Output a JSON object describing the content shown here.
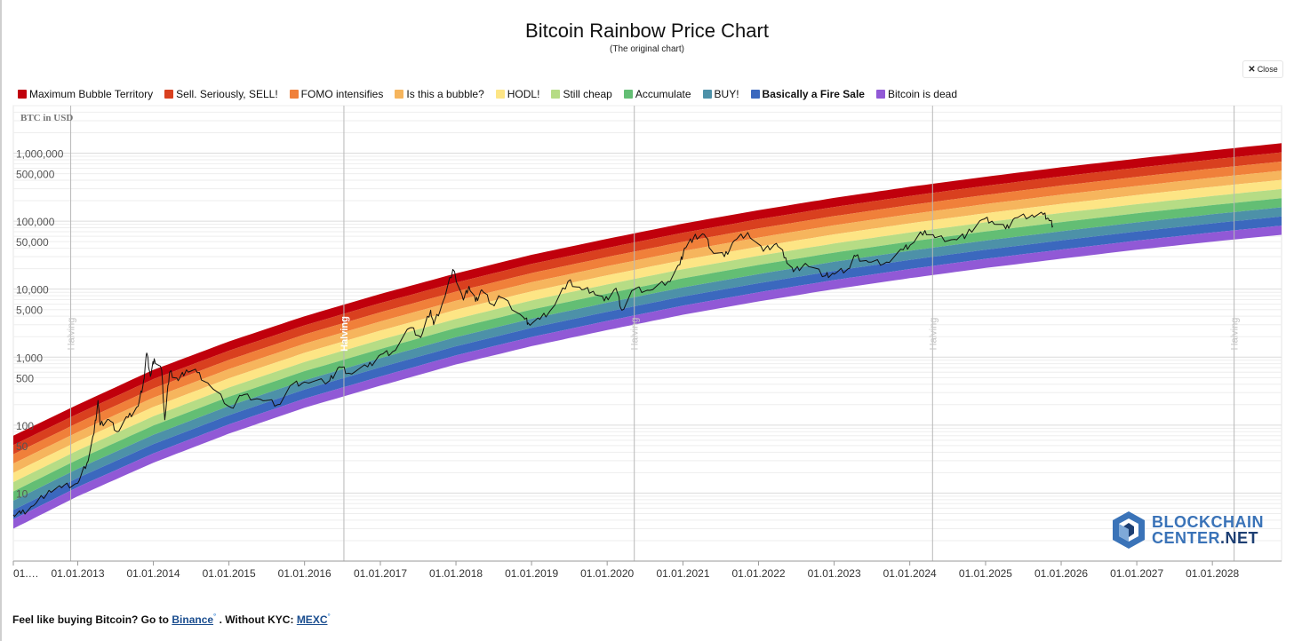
{
  "page": {
    "title": "Bitcoin Rainbow Price Chart",
    "subtitle": "(The original chart)",
    "close_label": "Close",
    "footer": {
      "prefix": "Feel like buying Bitcoin? Go to",
      "link1": "Binance",
      "middle": ". Without KYC:",
      "link2": "MEXC",
      "mark": "°"
    },
    "logo": {
      "line1": "BLOCKCHAIN",
      "line2a": "CENTER",
      "line2b": ".NET"
    }
  },
  "chart_data": {
    "type": "area",
    "title": "Bitcoin Rainbow Price Chart",
    "ylabel": "BTC in USD",
    "y_scale": "log",
    "ylim": [
      1,
      5000000
    ],
    "xlim": [
      "2012-02-25",
      "2028-11-30"
    ],
    "y_ticks": [
      {
        "value": 1000000,
        "label": "1,000,000"
      },
      {
        "value": 500000,
        "label": "500,000"
      },
      {
        "value": 100000,
        "label": "100,000"
      },
      {
        "value": 50000,
        "label": "50,000"
      },
      {
        "value": 10000,
        "label": "10,000"
      },
      {
        "value": 5000,
        "label": "5,000"
      },
      {
        "value": 1000,
        "label": "1,000"
      },
      {
        "value": 500,
        "label": "500"
      },
      {
        "value": 100,
        "label": "100"
      },
      {
        "value": 50,
        "label": "50"
      },
      {
        "value": 10,
        "label": "10"
      }
    ],
    "x_ticks": [
      {
        "date": "2012-02-25",
        "label": "01.…"
      },
      {
        "date": "2013-01-01",
        "label": "01.01.2013"
      },
      {
        "date": "2014-01-01",
        "label": "01.01.2014"
      },
      {
        "date": "2015-01-01",
        "label": "01.01.2015"
      },
      {
        "date": "2016-01-01",
        "label": "01.01.2016"
      },
      {
        "date": "2017-01-01",
        "label": "01.01.2017"
      },
      {
        "date": "2018-01-01",
        "label": "01.01.2018"
      },
      {
        "date": "2019-01-01",
        "label": "01.01.2019"
      },
      {
        "date": "2020-01-01",
        "label": "01.01.2020"
      },
      {
        "date": "2021-01-01",
        "label": "01.01.2021"
      },
      {
        "date": "2022-01-01",
        "label": "01.01.2022"
      },
      {
        "date": "2023-01-01",
        "label": "01.01.2023"
      },
      {
        "date": "2024-01-01",
        "label": "01.01.2024"
      },
      {
        "date": "2025-01-01",
        "label": "01.01.2025"
      },
      {
        "date": "2026-01-01",
        "label": "01.01.2026"
      },
      {
        "date": "2027-01-01",
        "label": "01.01.2027"
      },
      {
        "date": "2028-01-01",
        "label": "01.01.2028"
      }
    ],
    "halvings": [
      {
        "date": "2012-11-28",
        "label": "Halving"
      },
      {
        "date": "2016-07-09",
        "label": "Halving"
      },
      {
        "date": "2020-05-11",
        "label": "Halving"
      },
      {
        "date": "2024-04-20",
        "label": "Halving"
      },
      {
        "date": "2028-04-15",
        "label": "Halving"
      }
    ],
    "bands": [
      {
        "name": "Maximum Bubble Territory",
        "color": "#c0000c"
      },
      {
        "name": "Sell. Seriously, SELL!",
        "color": "#d9401f"
      },
      {
        "name": "FOMO intensifies",
        "color": "#f0803a"
      },
      {
        "name": "Is this a bubble?",
        "color": "#f6b55d"
      },
      {
        "name": "HODL!",
        "color": "#fde585"
      },
      {
        "name": "Still cheap",
        "color": "#b6dc85"
      },
      {
        "name": "Accumulate",
        "color": "#63be74"
      },
      {
        "name": "BUY!",
        "color": "#4d91a8"
      },
      {
        "name": "Basically a Fire Sale",
        "color": "#3b68be"
      },
      {
        "name": "Bitcoin is dead",
        "color": "#9159d6"
      }
    ],
    "band_boundaries": [
      {
        "date": "2012-02-25",
        "top": 70,
        "bottom": 3
      },
      {
        "date": "2013-01-01",
        "top": 200,
        "bottom": 9
      },
      {
        "date": "2014-01-01",
        "top": 650,
        "bottom": 28
      },
      {
        "date": "2015-01-01",
        "top": 1700,
        "bottom": 75
      },
      {
        "date": "2016-01-01",
        "top": 4000,
        "bottom": 180
      },
      {
        "date": "2017-01-01",
        "top": 8500,
        "bottom": 380
      },
      {
        "date": "2018-01-01",
        "top": 17000,
        "bottom": 780
      },
      {
        "date": "2019-01-01",
        "top": 32000,
        "bottom": 1450
      },
      {
        "date": "2020-01-01",
        "top": 55000,
        "bottom": 2500
      },
      {
        "date": "2021-01-01",
        "top": 92000,
        "bottom": 4200
      },
      {
        "date": "2022-01-01",
        "top": 145000,
        "bottom": 6600
      },
      {
        "date": "2023-01-01",
        "top": 220000,
        "bottom": 10000
      },
      {
        "date": "2024-01-01",
        "top": 320000,
        "bottom": 14500
      },
      {
        "date": "2025-01-01",
        "top": 450000,
        "bottom": 20500
      },
      {
        "date": "2026-01-01",
        "top": 620000,
        "bottom": 28000
      },
      {
        "date": "2027-01-01",
        "top": 830000,
        "bottom": 38000
      },
      {
        "date": "2028-01-01",
        "top": 1100000,
        "bottom": 50000
      },
      {
        "date": "2028-11-30",
        "top": 1400000,
        "bottom": 63000
      }
    ],
    "price_series": {
      "color": "#111111",
      "points": [
        [
          "2012-02-25",
          4.8
        ],
        [
          "2012-04-01",
          5.0
        ],
        [
          "2012-06-01",
          6.5
        ],
        [
          "2012-08-15",
          11
        ],
        [
          "2012-10-15",
          12
        ],
        [
          "2013-01-01",
          14
        ],
        [
          "2013-02-15",
          28
        ],
        [
          "2013-03-20",
          75
        ],
        [
          "2013-04-09",
          230
        ],
        [
          "2013-04-20",
          100
        ],
        [
          "2013-06-01",
          120
        ],
        [
          "2013-07-10",
          80
        ],
        [
          "2013-09-01",
          130
        ],
        [
          "2013-10-20",
          190
        ],
        [
          "2013-11-15",
          450
        ],
        [
          "2013-11-30",
          1150
        ],
        [
          "2013-12-18",
          520
        ],
        [
          "2014-01-05",
          950
        ],
        [
          "2014-02-10",
          650
        ],
        [
          "2014-02-25",
          120
        ],
        [
          "2014-03-20",
          600
        ],
        [
          "2014-05-01",
          450
        ],
        [
          "2014-06-10",
          650
        ],
        [
          "2014-08-01",
          590
        ],
        [
          "2014-10-01",
          380
        ],
        [
          "2015-01-14",
          180
        ],
        [
          "2015-03-01",
          270
        ],
        [
          "2015-06-01",
          240
        ],
        [
          "2015-08-24",
          200
        ],
        [
          "2015-11-04",
          400
        ],
        [
          "2016-01-01",
          430
        ],
        [
          "2016-05-01",
          450
        ],
        [
          "2016-06-18",
          720
        ],
        [
          "2016-08-01",
          580
        ],
        [
          "2016-11-01",
          720
        ],
        [
          "2017-01-04",
          1100
        ],
        [
          "2017-03-01",
          1200
        ],
        [
          "2017-05-25",
          2700
        ],
        [
          "2017-07-15",
          1950
        ],
        [
          "2017-09-01",
          4900
        ],
        [
          "2017-09-15",
          3000
        ],
        [
          "2017-11-01",
          6700
        ],
        [
          "2017-12-17",
          19500
        ],
        [
          "2018-02-06",
          6900
        ],
        [
          "2018-03-05",
          11000
        ],
        [
          "2018-04-06",
          6600
        ],
        [
          "2018-05-05",
          9800
        ],
        [
          "2018-06-29",
          5900
        ],
        [
          "2018-08-01",
          7700
        ],
        [
          "2018-11-25",
          3800
        ],
        [
          "2018-12-15",
          3200
        ],
        [
          "2019-02-10",
          3600
        ],
        [
          "2019-04-10",
          5200
        ],
        [
          "2019-06-26",
          13000
        ],
        [
          "2019-09-01",
          9800
        ],
        [
          "2019-10-26",
          9300
        ],
        [
          "2019-12-18",
          6700
        ],
        [
          "2020-02-13",
          10300
        ],
        [
          "2020-03-12",
          4900
        ],
        [
          "2020-05-08",
          9800
        ],
        [
          "2020-07-25",
          9600
        ],
        [
          "2020-10-21",
          13000
        ],
        [
          "2020-12-17",
          23000
        ],
        [
          "2021-01-08",
          40000
        ],
        [
          "2021-02-21",
          57000
        ],
        [
          "2021-04-14",
          63500
        ],
        [
          "2021-05-19",
          37000
        ],
        [
          "2021-07-20",
          30000
        ],
        [
          "2021-09-06",
          52000
        ],
        [
          "2021-11-10",
          68000
        ],
        [
          "2022-01-24",
          36000
        ],
        [
          "2022-03-28",
          47000
        ],
        [
          "2022-05-12",
          29000
        ],
        [
          "2022-06-18",
          18000
        ],
        [
          "2022-08-15",
          24000
        ],
        [
          "2022-11-21",
          15800
        ],
        [
          "2023-01-01",
          16600
        ],
        [
          "2023-03-10",
          20000
        ],
        [
          "2023-04-14",
          30500
        ],
        [
          "2023-06-15",
          25000
        ],
        [
          "2023-09-11",
          25000
        ],
        [
          "2023-12-01",
          38000
        ],
        [
          "2024-01-10",
          46000
        ],
        [
          "2024-03-14",
          73000
        ],
        [
          "2024-05-01",
          57000
        ],
        [
          "2024-08-05",
          54000
        ],
        [
          "2024-10-01",
          63000
        ],
        [
          "2024-12-17",
          106000
        ],
        [
          "2025-02-01",
          100000
        ],
        [
          "2025-04-08",
          77000
        ],
        [
          "2025-05-22",
          111000
        ],
        [
          "2025-08-14",
          124000
        ],
        [
          "2025-10-06",
          125000
        ],
        [
          "2025-11-01",
          108000
        ],
        [
          "2025-11-22",
          85000
        ]
      ]
    }
  }
}
